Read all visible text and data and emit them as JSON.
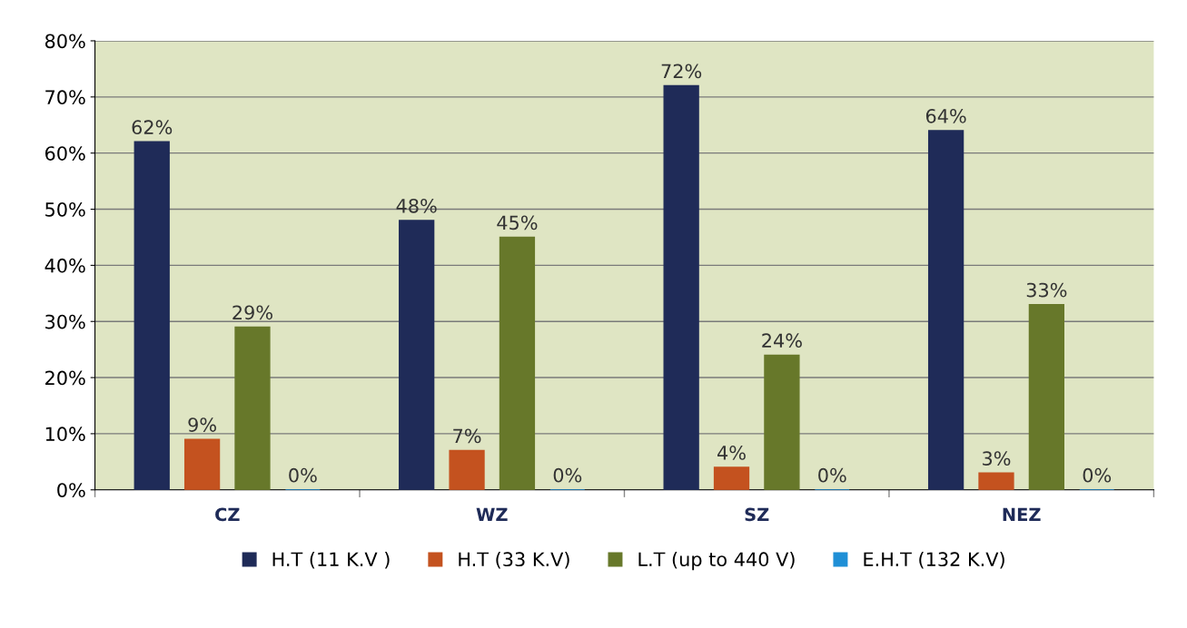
{
  "chart_data": {
    "type": "bar",
    "categories": [
      "CZ",
      "WZ",
      "SZ",
      "NEZ"
    ],
    "series": [
      {
        "name": "H.T (11 K.V )",
        "color": "#1f2b58",
        "values": [
          62,
          48,
          72,
          64
        ],
        "value_labels": [
          "62%",
          "48%",
          "72%",
          "64%"
        ]
      },
      {
        "name": "H.T (33 K.V)",
        "color": "#c4521f",
        "values": [
          9,
          7,
          4,
          3
        ],
        "value_labels": [
          "9%",
          "7%",
          "4%",
          "3%"
        ]
      },
      {
        "name": "L.T (up to 440 V)",
        "color": "#67782a",
        "values": [
          29,
          45,
          24,
          33
        ],
        "value_labels": [
          "29%",
          "45%",
          "24%",
          "33%"
        ]
      },
      {
        "name": "E.H.T (132 K.V)",
        "color": "#1f8fd6",
        "values": [
          0,
          0,
          0,
          0
        ],
        "value_labels": [
          "0%",
          "0%",
          "0%",
          "0%"
        ]
      }
    ],
    "ylim": [
      0,
      80
    ],
    "yticks": [
      {
        "value": 0,
        "label": "0%"
      },
      {
        "value": 10,
        "label": "10%"
      },
      {
        "value": 20,
        "label": "20%"
      },
      {
        "value": 30,
        "label": "30%"
      },
      {
        "value": 40,
        "label": "40%"
      },
      {
        "value": 50,
        "label": "50%"
      },
      {
        "value": 60,
        "label": "60%"
      },
      {
        "value": 70,
        "label": "70%"
      },
      {
        "value": 80,
        "label": "80%"
      }
    ],
    "grid": "y",
    "legend": "bottom"
  }
}
